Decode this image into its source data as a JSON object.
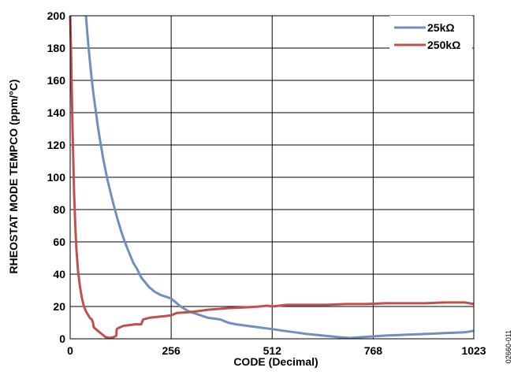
{
  "figure_id": "02660-011",
  "chart_data": {
    "type": "line",
    "xlabel": "CODE (Decimal)",
    "ylabel": "RHEOSTAT MODE TEMPCO (ppm/°C)",
    "xlim": [
      0,
      1023
    ],
    "ylim": [
      0,
      200
    ],
    "xticks": [
      0,
      256,
      512,
      768,
      1023
    ],
    "yticks": [
      0,
      20,
      40,
      60,
      80,
      100,
      120,
      140,
      160,
      180,
      200
    ],
    "grid": true,
    "legend_position": "top-right",
    "series": [
      {
        "name": "25kΩ",
        "color": "#6f8fc0",
        "x": [
          40,
          45,
          50,
          55,
          60,
          65,
          70,
          75,
          80,
          85,
          90,
          95,
          100,
          110,
          120,
          130,
          140,
          150,
          160,
          170,
          180,
          190,
          200,
          215,
          230,
          256,
          280,
          300,
          325,
          350,
          380,
          400,
          420,
          450,
          480,
          512,
          540,
          570,
          600,
          640,
          680,
          710,
          740,
          770,
          800,
          850,
          900,
          950,
          1000,
          1023
        ],
        "y": [
          200,
          185,
          172,
          160,
          150,
          141,
          132,
          124,
          117,
          110,
          104,
          98,
          93,
          83,
          74,
          66,
          59,
          53,
          47,
          43,
          38,
          35,
          32,
          29,
          27,
          25,
          20,
          17,
          15,
          13,
          12,
          10,
          9,
          8,
          7,
          6,
          5,
          4,
          3,
          2,
          1,
          0.5,
          1,
          1.5,
          2,
          2.5,
          3,
          3.5,
          4,
          5
        ]
      },
      {
        "name": "250kΩ",
        "color": "#c0504d",
        "x": [
          0,
          2,
          4,
          6,
          8,
          10,
          13,
          16,
          20,
          25,
          30,
          35,
          40,
          45,
          50,
          55,
          58,
          60,
          70,
          80,
          90,
          100,
          110,
          117,
          118,
          125,
          135,
          150,
          165,
          180,
          185,
          200,
          220,
          240,
          256,
          270,
          300,
          320,
          350,
          400,
          450,
          480,
          500,
          512,
          550,
          600,
          650,
          700,
          750,
          800,
          850,
          900,
          950,
          1000,
          1023
        ],
        "y": [
          200,
          180,
          155,
          130,
          110,
          90,
          70,
          55,
          42,
          32,
          25,
          20,
          17,
          15,
          13,
          12,
          10,
          7,
          5,
          3,
          1,
          0.5,
          1,
          2,
          6,
          7,
          8,
          8.5,
          9,
          9,
          12,
          13,
          13.5,
          14,
          14.5,
          16,
          16.5,
          17,
          18,
          19,
          19.5,
          20,
          20.5,
          20,
          21,
          21,
          21,
          21.5,
          21.5,
          22,
          22,
          22,
          22.5,
          22.5,
          21.5
        ]
      }
    ]
  }
}
